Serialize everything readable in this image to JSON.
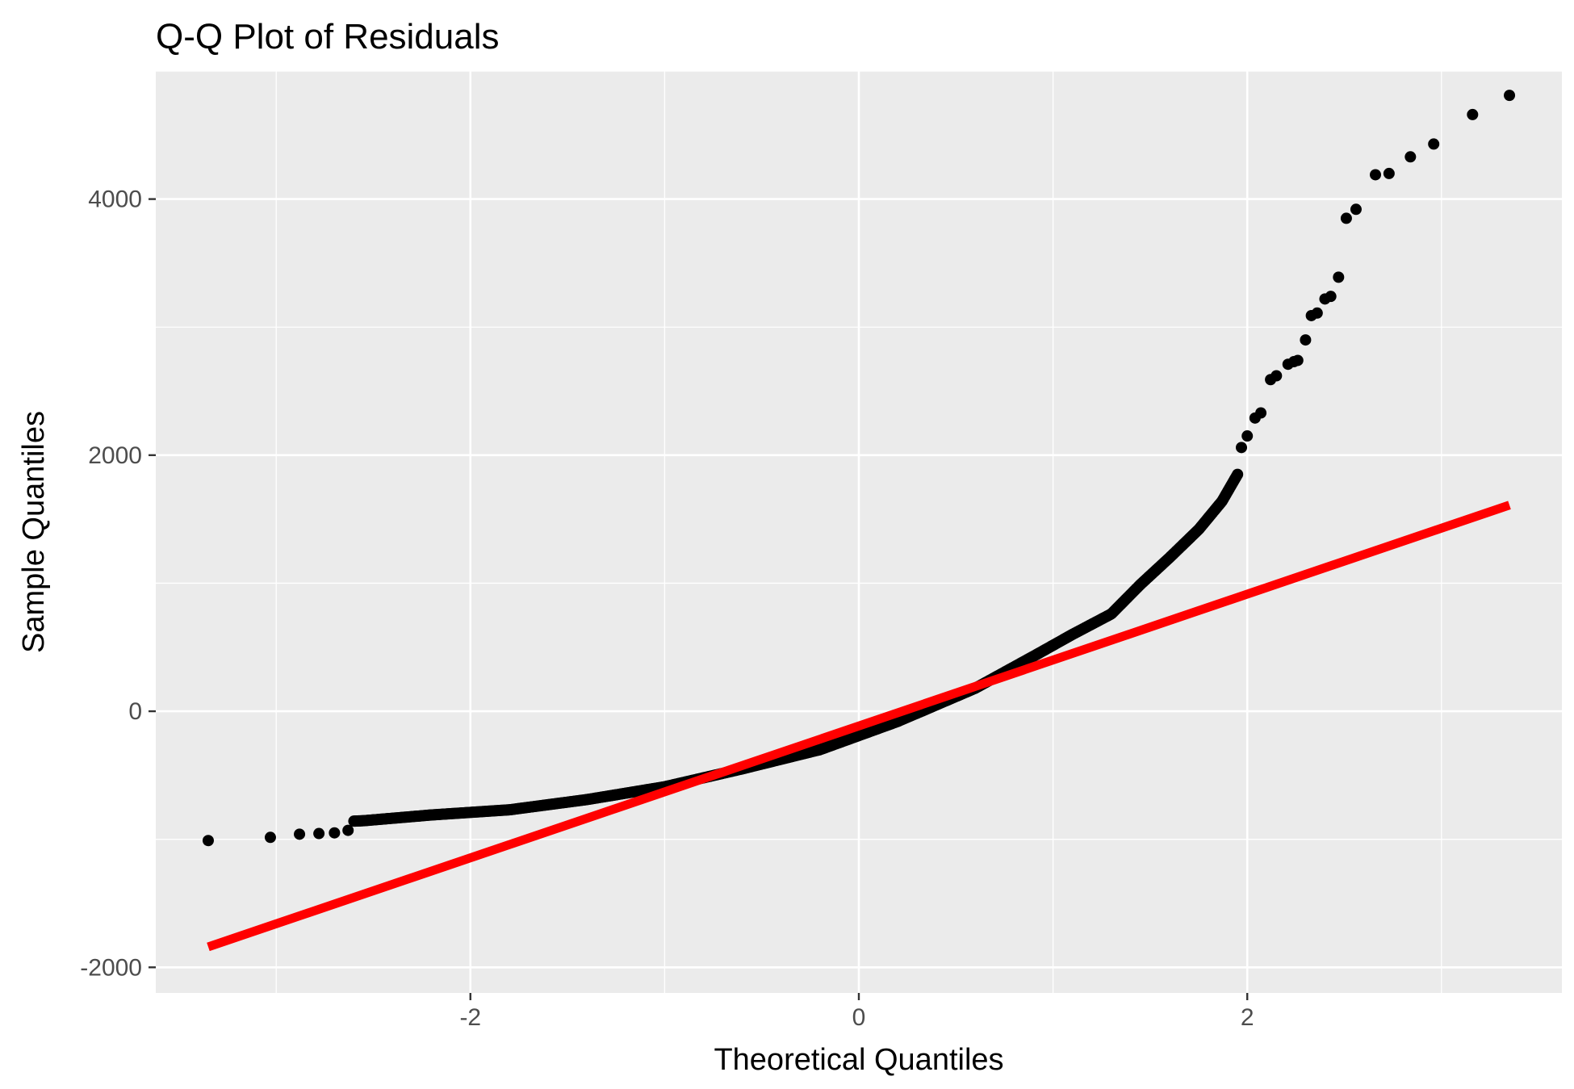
{
  "chart_data": {
    "type": "scatter",
    "title": "Q-Q Plot of Residuals",
    "xlabel": "Theoretical Quantiles",
    "ylabel": "Sample Quantiles",
    "xlim": [
      -3.62,
      3.62
    ],
    "ylim": [
      -2200,
      5000
    ],
    "x_ticks": [
      -2,
      0,
      2
    ],
    "x_tick_labels": [
      "-2",
      "0",
      "2"
    ],
    "y_ticks": [
      -2000,
      0,
      2000,
      4000
    ],
    "y_tick_labels": [
      "-2000",
      "0",
      "2000",
      "4000"
    ],
    "grid": true,
    "legend": "none",
    "colors": {
      "panel": "#ebebeb",
      "grid": "#ffffff",
      "points": "#000000",
      "line": "#ff0000"
    },
    "reference_line": {
      "x": [
        -3.35,
        3.35
      ],
      "y": [
        -1840,
        1610
      ]
    },
    "anchors": {
      "x": [
        -3.35,
        -2.95,
        -2.55,
        -2.2,
        -1.8,
        -1.4,
        -1.0,
        -0.6,
        -0.2,
        0.2,
        0.6,
        0.9,
        1.1,
        1.3,
        1.45,
        1.6,
        1.75,
        1.87,
        1.95
      ],
      "y": [
        -910,
        -880,
        -855,
        -810,
        -770,
        -690,
        -590,
        -450,
        -300,
        -80,
        180,
        430,
        600,
        760,
        990,
        1200,
        1420,
        1640,
        1850
      ]
    },
    "tail_points": {
      "x": [
        -3.35,
        -3.03,
        -2.88,
        -2.78,
        -2.7,
        -2.63,
        1.97,
        2.0,
        2.04,
        2.07,
        2.12,
        2.15,
        2.21,
        2.24,
        2.26,
        2.3,
        2.33,
        2.36,
        2.4,
        2.43,
        2.47,
        2.51,
        2.56,
        2.66,
        2.73,
        2.84,
        2.96,
        3.16,
        3.35
      ],
      "y": [
        -1010,
        -985,
        -960,
        -955,
        -950,
        -930,
        2060,
        2150,
        2290,
        2330,
        2590,
        2620,
        2710,
        2730,
        2740,
        2900,
        3090,
        3110,
        3220,
        3240,
        3390,
        3850,
        3920,
        4190,
        4200,
        4330,
        4430,
        4660,
        4810
      ]
    },
    "n_points": 700
  }
}
